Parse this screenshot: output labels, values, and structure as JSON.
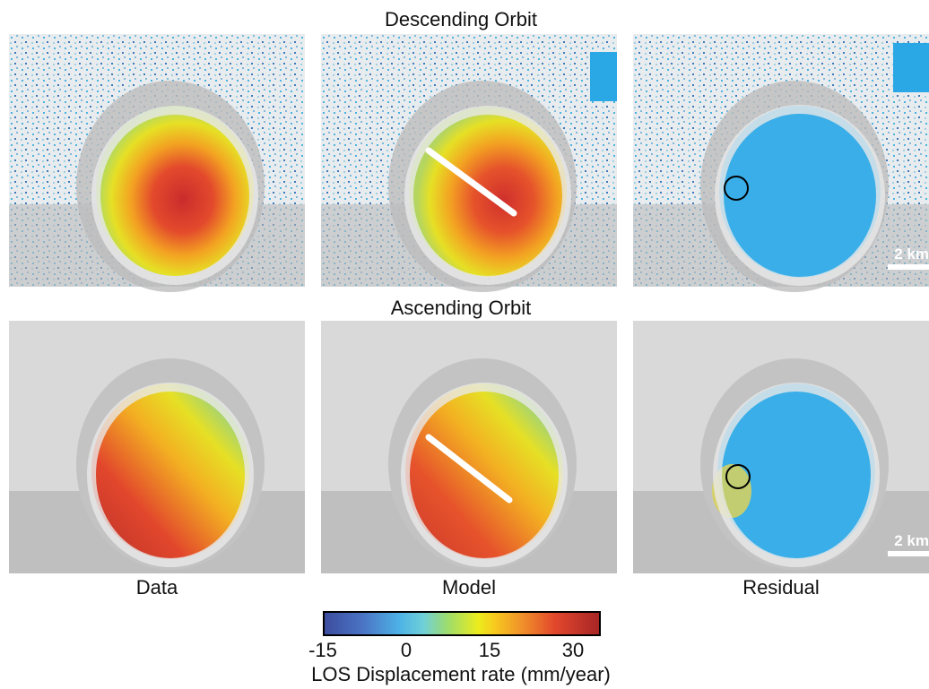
{
  "rows": [
    {
      "title": "Descending Orbit",
      "panels": [
        "Data",
        "Model",
        "Residual"
      ]
    },
    {
      "title": "Ascending Orbit",
      "panels": [
        "Data",
        "Model",
        "Residual"
      ]
    }
  ],
  "columns": [
    "Data",
    "Model",
    "Residual"
  ],
  "scale_bar": "2 km",
  "colorbar": {
    "ticks": [
      "-15",
      "0",
      "15",
      "30"
    ],
    "label": "LOS Displacement rate (mm/year)",
    "range": [
      -15,
      35
    ],
    "colors": [
      "#3d4d9e",
      "#4db1e6",
      "#ecec1e",
      "#f0902a",
      "#e2472c",
      "#a82626"
    ]
  }
}
